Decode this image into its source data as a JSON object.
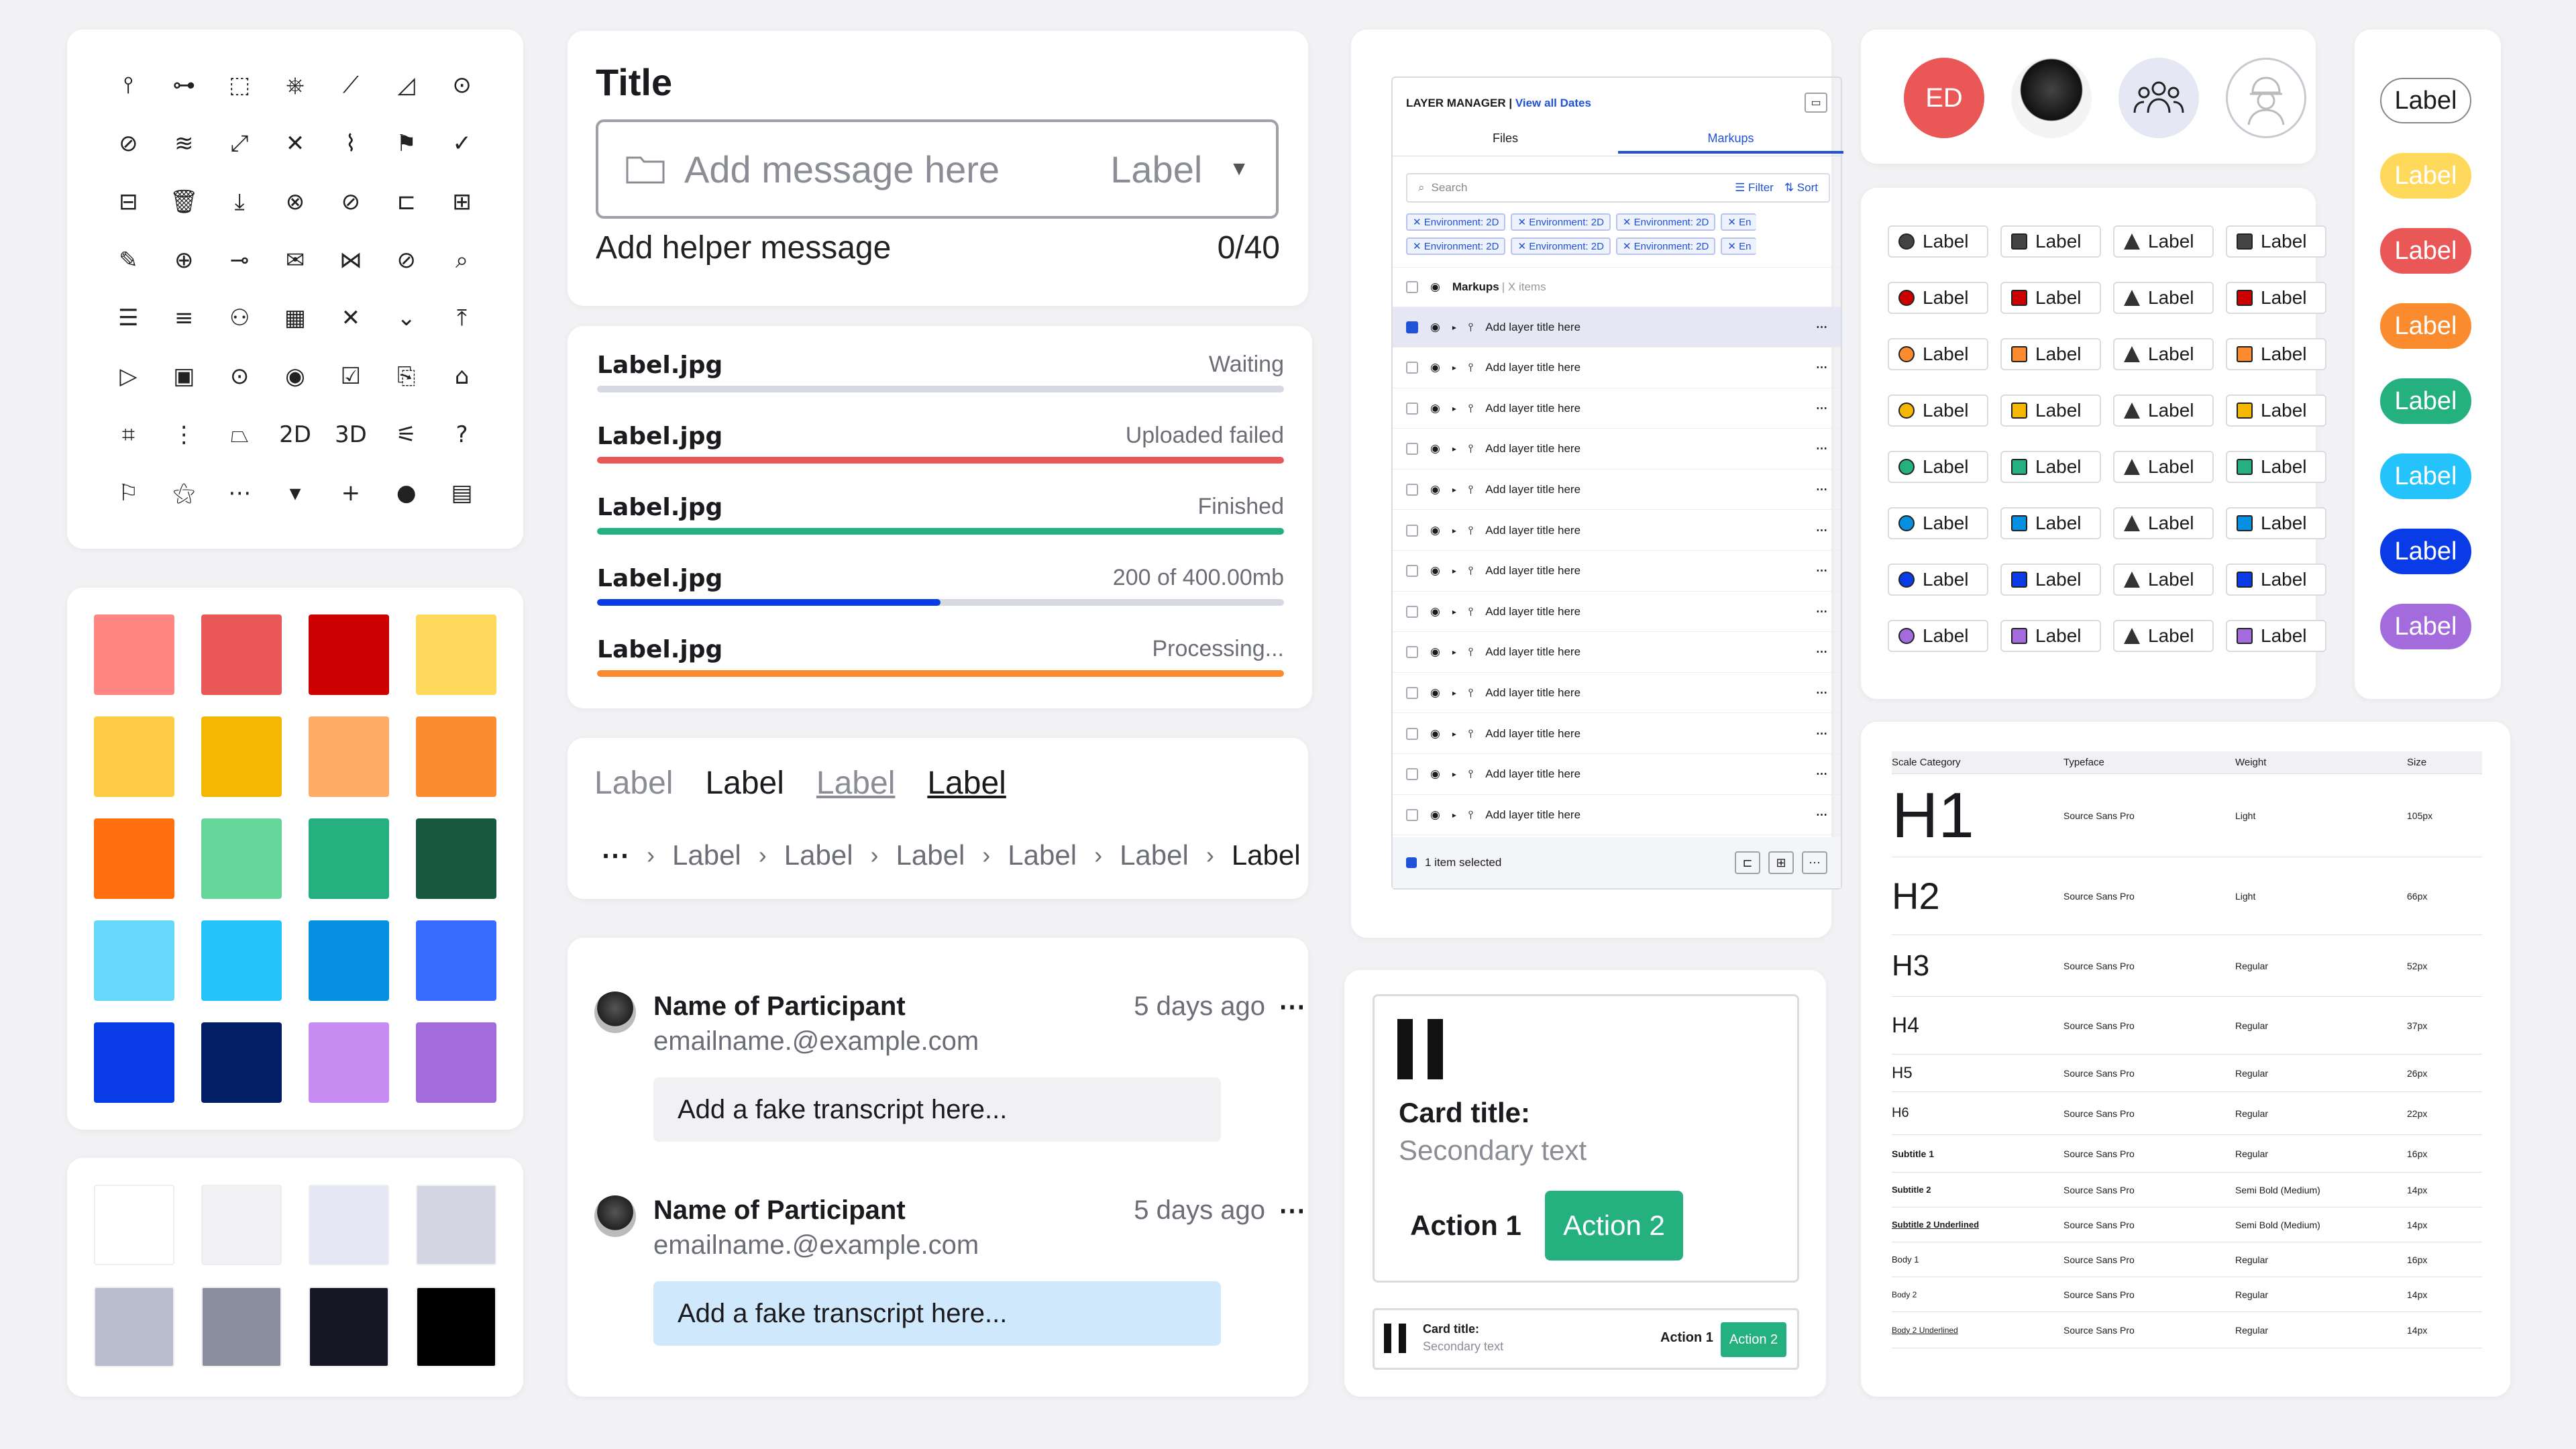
{
  "icons": [
    "⫯",
    "⊶",
    "⬚",
    "⎈",
    "⟋",
    "◿",
    "⊙",
    "⊘",
    "≋",
    "⤢",
    "✕",
    "⌇",
    "⚑",
    "✓",
    "⊟",
    "🗑",
    "⤓",
    "⊗",
    "⊘",
    "⊏",
    "⊞",
    "✎",
    "⊕",
    "⊸",
    "✉",
    "⋈",
    "⊘",
    "⌕",
    "☰",
    "≡",
    "⚇",
    "▦",
    "✕",
    "⌄",
    "⤒",
    "▷",
    "▣",
    "⊙",
    "◉",
    "☑",
    "⎘",
    "⌂",
    "⌗",
    "⋮",
    "⏢",
    "2D",
    "3D",
    "⚟",
    "?",
    "⚐",
    "⚝",
    "⋯",
    "▾",
    "+",
    "●",
    "▤"
  ],
  "icon_names": [
    "marker",
    "ruler",
    "frame",
    "robot",
    "path",
    "angle",
    "camera",
    "hidden",
    "layers",
    "expand",
    "close",
    "attachment",
    "flag",
    "check",
    "lock",
    "trash",
    "download",
    "close-circle",
    "check-circle",
    "folder",
    "folder-add",
    "pencil",
    "globe",
    "link",
    "mail",
    "share",
    "no-pen",
    "search",
    "sliders",
    "text-align",
    "user",
    "calendar",
    "x",
    "chevron-down",
    "upload",
    "video",
    "media",
    "location",
    "eye",
    "checkbox",
    "copy",
    "home",
    "crop",
    "drag",
    "terrain",
    "2d",
    "3d",
    "hand",
    "help",
    "people",
    "magic",
    "more",
    "caret-down",
    "plus",
    "dot",
    "comment"
  ],
  "swatches": [
    "#ff8583",
    "#e95757",
    "#cc0000",
    "#ffd95c",
    "#ffcc47",
    "#f5b800",
    "#ffab66",
    "#fa8c2f",
    "#ff6f0f",
    "#66d69a",
    "#25b07f",
    "#18583f",
    "#66d9fa",
    "#24c3fb",
    "#048fe0",
    "#386bff",
    "#093be6",
    "#021f66",
    "#c78cf2",
    "#a36bdb"
  ],
  "grays": [
    "#ffffff",
    "#f1f1f4",
    "#e6e7f4",
    "#d3d5e2",
    "#b8bccc",
    "#8a8e9c",
    "#161625",
    "#000000"
  ],
  "form": {
    "title": "Title",
    "placeholder": "Add message here",
    "label": "Label",
    "helper": "Add helper message",
    "counter": "0/40"
  },
  "uploads": [
    {
      "name": "Label.jpg",
      "status": "Waiting",
      "progress": 0,
      "color": "#d6d8e2"
    },
    {
      "name": "Label.jpg",
      "status": "Uploaded failed",
      "progress": 1,
      "color": "#e95757"
    },
    {
      "name": "Label.jpg",
      "status": "Finished",
      "progress": 1,
      "color": "#25b07f"
    },
    {
      "name": "Label.jpg",
      "status": "200 of 400.00mb",
      "progress": 0.5,
      "color": "#093be6"
    },
    {
      "name": "Label.jpg",
      "status": "Processing...",
      "progress": 1,
      "color": "#fa8c2f"
    }
  ],
  "tabs": [
    "Label",
    "Label",
    "Label",
    "Label"
  ],
  "breadcrumbs": [
    "⋯",
    "Label",
    "Label",
    "Label",
    "Label",
    "Label",
    "Label"
  ],
  "chat": [
    {
      "name": "Name of Participant",
      "email": "emailname.@example.com",
      "time": "5 days ago",
      "more": "⋯",
      "msg": "Add a fake transcript here...",
      "bg": "#f1f1f4"
    },
    {
      "name": "Name of Participant",
      "email": "emailname.@example.com",
      "time": "5 days ago",
      "more": "⋯",
      "msg": "Add a fake transcript here...",
      "bg": "#cfe8fb"
    }
  ],
  "layer_manager": {
    "title": "LAYER MANAGER |",
    "link": "View all Dates",
    "tab_files": "Files",
    "tab_markups": "Markups",
    "search": "Search",
    "filter": "☰ Filter",
    "sort": "⇅ Sort",
    "chip": "✕ Environment: 2D",
    "chip_cut": "✕ En",
    "group": "Markups",
    "group_count": "| X items",
    "row": "Add layer title here",
    "footer": "1 item selected"
  },
  "cards": {
    "title": "Card title:",
    "secondary": "Secondary text",
    "action1": "Action 1",
    "action2": "Action 2"
  },
  "avatars": {
    "initials": "ED"
  },
  "badge_label": "Label",
  "badge_colors": [
    "#444444",
    "#cc0000",
    "#fa8c2f",
    "#f5b800",
    "#25b07f",
    "#048fe0",
    "#093be6",
    "#a36bdb"
  ],
  "pills": [
    {
      "label": "Label",
      "bg": "#ffffff",
      "fg": "#1b1b1f",
      "border": "#888"
    },
    {
      "label": "Label",
      "bg": "#ffd95c",
      "fg": "#ffffff",
      "border": "#ffd95c"
    },
    {
      "label": "Label",
      "bg": "#e95757",
      "fg": "#ffffff",
      "border": "#e95757"
    },
    {
      "label": "Label",
      "bg": "#fa8c2f",
      "fg": "#ffffff",
      "border": "#fa8c2f"
    },
    {
      "label": "Label",
      "bg": "#25b07f",
      "fg": "#ffffff",
      "border": "#25b07f"
    },
    {
      "label": "Label",
      "bg": "#24c3fb",
      "fg": "#ffffff",
      "border": "#24c3fb"
    },
    {
      "label": "Label",
      "bg": "#093be6",
      "fg": "#ffffff",
      "border": "#093be6"
    },
    {
      "label": "Label",
      "bg": "#a36bdb",
      "fg": "#ffffff",
      "border": "#a36bdb"
    }
  ],
  "typescale": {
    "headers": [
      "Scale Category",
      "Typeface",
      "Weight",
      "Size"
    ],
    "rows": [
      [
        "H1",
        "Source Sans Pro",
        "Light",
        "105px"
      ],
      [
        "H2",
        "Source Sans Pro",
        "Light",
        "66px"
      ],
      [
        "H3",
        "Source Sans Pro",
        "Regular",
        "52px"
      ],
      [
        "H4",
        "Source Sans Pro",
        "Regular",
        "37px"
      ],
      [
        "H5",
        "Source Sans Pro",
        "Regular",
        "26px"
      ],
      [
        "H6",
        "Source Sans Pro",
        "Regular",
        "22px"
      ],
      [
        "Subtitle 1",
        "Source Sans Pro",
        "Regular",
        "16px"
      ],
      [
        "Subtitle 2",
        "Source Sans Pro",
        "Semi Bold (Medium)",
        "14px"
      ],
      [
        "Subtitle 2 Underlined",
        "Source Sans Pro",
        "Semi Bold (Medium)",
        "14px"
      ],
      [
        "Body 1",
        "Source Sans Pro",
        "Regular",
        "16px"
      ],
      [
        "Body 2",
        "Source Sans Pro",
        "Regular",
        "14px"
      ],
      [
        "Body 2 Underlined",
        "Source Sans Pro",
        "Regular",
        "14px"
      ]
    ]
  }
}
